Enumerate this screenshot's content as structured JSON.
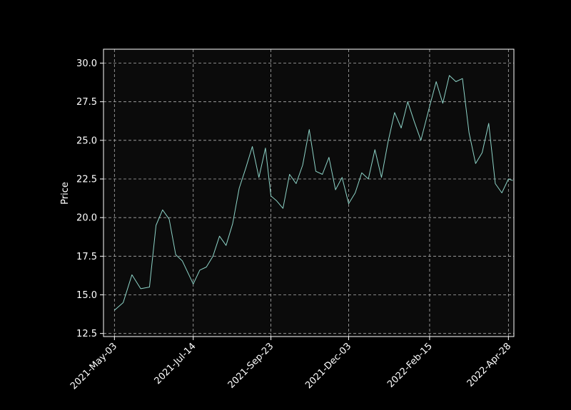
{
  "chart_data": {
    "type": "line",
    "title": "",
    "xlabel": "",
    "ylabel": "Price",
    "x_tick_labels": [
      "2021-May-03",
      "2021-Jul-14",
      "2021-Sep-23",
      "2021-Dec-03",
      "2022-Feb-15",
      "2022-Apr-28"
    ],
    "y_ticks": [
      12.5,
      15.0,
      17.5,
      20.0,
      22.5,
      25.0,
      27.5,
      30.0
    ],
    "y_tick_labels": [
      "12.5",
      "15.0",
      "17.5",
      "20.0",
      "22.5",
      "25.0",
      "27.5",
      "30.0"
    ],
    "ylim": [
      12.3,
      30.9
    ],
    "xlim": [
      "2021-Apr-23",
      "2022-May-03"
    ],
    "grid": true,
    "colors": {
      "background": "#000000",
      "plot_background": "#0b0b0b",
      "line": "#8dd3c7",
      "grid": "#b0b0b0",
      "axes": "#ffffff"
    },
    "series": [
      {
        "x": [
          "2021-May-03",
          "2021-May-11",
          "2021-May-19",
          "2021-May-27",
          "2021-Jun-04",
          "2021-Jun-10",
          "2021-Jun-16",
          "2021-Jun-22",
          "2021-Jun-28",
          "2021-Jul-04",
          "2021-Jul-10",
          "2021-Jul-14",
          "2021-Jul-20",
          "2021-Jul-26",
          "2021-Aug-01",
          "2021-Aug-07",
          "2021-Aug-13",
          "2021-Aug-19",
          "2021-Aug-25",
          "2021-Aug-31",
          "2021-Sep-06",
          "2021-Sep-12",
          "2021-Sep-18",
          "2021-Sep-23",
          "2021-Sep-28",
          "2021-Oct-04",
          "2021-Oct-10",
          "2021-Oct-16",
          "2021-Oct-22",
          "2021-Oct-28",
          "2021-Nov-03",
          "2021-Nov-09",
          "2021-Nov-15",
          "2021-Nov-21",
          "2021-Nov-27",
          "2021-Dec-03",
          "2021-Dec-09",
          "2021-Dec-15",
          "2021-Dec-21",
          "2021-Dec-27",
          "2022-Jan-02",
          "2022-Jan-08",
          "2022-Jan-14",
          "2022-Jan-20",
          "2022-Jan-26",
          "2022-Feb-01",
          "2022-Feb-07",
          "2022-Feb-15",
          "2022-Feb-21",
          "2022-Feb-27",
          "2022-Mar-05",
          "2022-Mar-11",
          "2022-Mar-17",
          "2022-Mar-23",
          "2022-Mar-29",
          "2022-Apr-04",
          "2022-Apr-10",
          "2022-Apr-16",
          "2022-Apr-22",
          "2022-Apr-28",
          "2022-May-02"
        ],
        "y": [
          14.0,
          14.5,
          16.3,
          15.4,
          15.5,
          19.5,
          20.5,
          19.9,
          17.6,
          17.2,
          16.3,
          15.7,
          16.6,
          16.8,
          17.5,
          18.8,
          18.2,
          19.6,
          21.9,
          23.2,
          24.6,
          22.6,
          24.5,
          21.4,
          21.1,
          20.6,
          22.8,
          22.2,
          23.4,
          25.7,
          23.0,
          22.8,
          23.9,
          21.8,
          22.6,
          20.9,
          21.6,
          22.9,
          22.5,
          24.4,
          22.6,
          24.9,
          26.8,
          25.8,
          27.5,
          26.2,
          25.0,
          27.2,
          28.8,
          27.4,
          29.2,
          28.8,
          29.0,
          25.5,
          23.5,
          24.2,
          26.1,
          22.2,
          21.6,
          22.5,
          22.4
        ]
      }
    ]
  }
}
